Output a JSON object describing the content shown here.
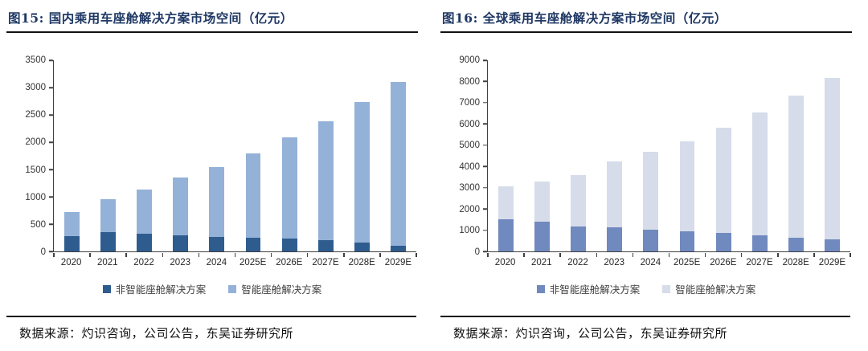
{
  "colors": {
    "title_navy": "#1F3864",
    "rule": "#111111",
    "axis": "#404040",
    "domestic_dark": "#2F5C8F",
    "domestic_light": "#94B2D8",
    "global_dark": "#7089BE",
    "global_light": "#D6DCEA"
  },
  "chart_data": [
    {
      "type": "bar",
      "stacked": true,
      "title": "图15:  国内乘用车座舱解决方案市场空间（亿元）",
      "categories": [
        "2020",
        "2021",
        "2022",
        "2023",
        "2024",
        "2025E",
        "2026E",
        "2027E",
        "2028E",
        "2029E"
      ],
      "series": [
        {
          "name": "非智能座舱解决方案",
          "color": "#2F5C8F",
          "values": [
            280,
            360,
            320,
            290,
            270,
            250,
            235,
            200,
            160,
            110
          ]
        },
        {
          "name": "智能座舱解决方案",
          "color": "#94B2D8",
          "values": [
            440,
            590,
            820,
            1060,
            1280,
            1550,
            1850,
            2190,
            2570,
            2990
          ]
        }
      ],
      "totals": [
        720,
        950,
        1140,
        1350,
        1550,
        1800,
        2085,
        2390,
        2730,
        3100
      ],
      "ylim": [
        0,
        3500
      ],
      "yticks": [
        0,
        500,
        1000,
        1500,
        2000,
        2500,
        3000,
        3500
      ],
      "grid": false,
      "legend_position": "bottom",
      "source": "数据来源：灼识咨询，公司公告，东吴证券研究所"
    },
    {
      "type": "bar",
      "stacked": true,
      "title": "图16:  全球乘用车座舱解决方案市场空间（亿元）",
      "categories": [
        "2020",
        "2021",
        "2022",
        "2023",
        "2024",
        "2025E",
        "2026E",
        "2027E",
        "2028E",
        "2029E"
      ],
      "series": [
        {
          "name": "非智能座舱解决方案",
          "color": "#7089BE",
          "values": [
            1530,
            1400,
            1180,
            1120,
            1010,
            940,
            870,
            770,
            650,
            550
          ]
        },
        {
          "name": "智能座舱解决方案",
          "color": "#D6DCEA",
          "values": [
            1550,
            1900,
            2420,
            3130,
            3670,
            4260,
            4950,
            5760,
            6680,
            7620
          ]
        }
      ],
      "totals": [
        3080,
        3300,
        3600,
        4250,
        4680,
        5200,
        5820,
        6530,
        7330,
        8170
      ],
      "ylim": [
        0,
        9000
      ],
      "yticks": [
        0,
        1000,
        2000,
        3000,
        4000,
        5000,
        6000,
        7000,
        8000,
        9000
      ],
      "grid": false,
      "legend_position": "bottom",
      "source": "数据来源：灼识咨询，公司公告，东吴证券研究所"
    }
  ]
}
